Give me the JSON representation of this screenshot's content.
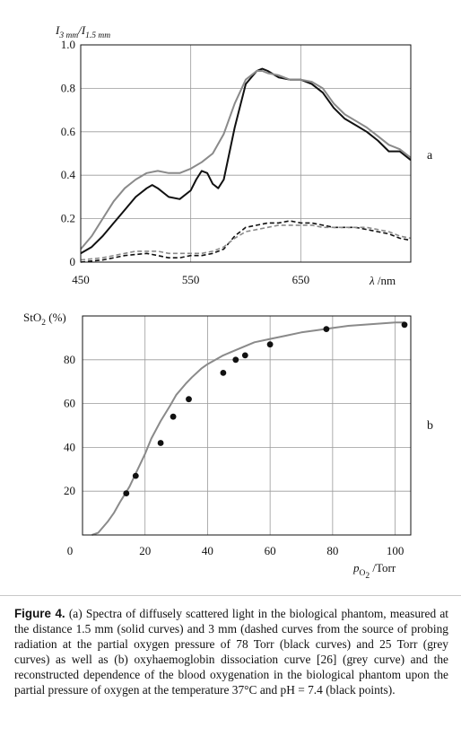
{
  "chart_data": [
    {
      "type": "line",
      "panel_label": "a",
      "ylabel_parts": [
        "I",
        "3 mm",
        "/I",
        "1.5 mm"
      ],
      "xlabel_parts": [
        "λ",
        " /nm"
      ],
      "xlim": [
        450,
        750
      ],
      "ylim": [
        0,
        1.0
      ],
      "x_ticks": [
        450,
        550,
        650
      ],
      "y_ticks": [
        "0",
        "0.2",
        "0.4",
        "0.6",
        "0.8",
        "1.0"
      ],
      "grid": true,
      "series": [
        {
          "style": "solid",
          "color": "#111111",
          "x": [
            450,
            460,
            470,
            480,
            490,
            500,
            510,
            515,
            520,
            530,
            540,
            550,
            555,
            560,
            565,
            570,
            575,
            580,
            590,
            600,
            610,
            615,
            620,
            630,
            640,
            650,
            660,
            670,
            680,
            690,
            700,
            710,
            720,
            730,
            740,
            750
          ],
          "y": [
            0.04,
            0.07,
            0.12,
            0.18,
            0.24,
            0.3,
            0.34,
            0.355,
            0.34,
            0.3,
            0.29,
            0.33,
            0.38,
            0.42,
            0.41,
            0.36,
            0.34,
            0.38,
            0.62,
            0.82,
            0.88,
            0.89,
            0.88,
            0.85,
            0.84,
            0.84,
            0.82,
            0.78,
            0.71,
            0.66,
            0.63,
            0.6,
            0.56,
            0.51,
            0.51,
            0.47
          ]
        },
        {
          "style": "solid",
          "color": "#8a8a8a",
          "x": [
            450,
            460,
            470,
            480,
            490,
            500,
            510,
            520,
            530,
            540,
            550,
            560,
            570,
            580,
            590,
            600,
            610,
            615,
            620,
            630,
            640,
            650,
            660,
            670,
            680,
            690,
            700,
            710,
            720,
            730,
            740,
            750
          ],
          "y": [
            0.06,
            0.12,
            0.2,
            0.28,
            0.34,
            0.38,
            0.41,
            0.42,
            0.41,
            0.41,
            0.43,
            0.46,
            0.5,
            0.59,
            0.73,
            0.84,
            0.88,
            0.88,
            0.87,
            0.86,
            0.84,
            0.84,
            0.83,
            0.8,
            0.73,
            0.68,
            0.65,
            0.62,
            0.58,
            0.54,
            0.52,
            0.48
          ]
        },
        {
          "style": "dashed",
          "color": "#111111",
          "x": [
            450,
            460,
            470,
            480,
            490,
            500,
            510,
            520,
            530,
            540,
            550,
            560,
            570,
            580,
            590,
            600,
            610,
            620,
            630,
            640,
            650,
            660,
            670,
            680,
            690,
            700,
            710,
            720,
            730,
            740,
            750
          ],
          "y": [
            0.0,
            0.005,
            0.01,
            0.02,
            0.03,
            0.035,
            0.04,
            0.03,
            0.02,
            0.02,
            0.03,
            0.03,
            0.04,
            0.06,
            0.12,
            0.16,
            0.17,
            0.18,
            0.18,
            0.19,
            0.18,
            0.18,
            0.17,
            0.16,
            0.16,
            0.16,
            0.15,
            0.14,
            0.13,
            0.11,
            0.1
          ]
        },
        {
          "style": "dashed",
          "color": "#8a8a8a",
          "x": [
            450,
            460,
            470,
            480,
            490,
            500,
            510,
            520,
            530,
            540,
            550,
            560,
            570,
            580,
            590,
            600,
            610,
            620,
            630,
            640,
            650,
            660,
            670,
            680,
            690,
            700,
            710,
            720,
            730,
            740,
            750
          ],
          "y": [
            0.01,
            0.015,
            0.02,
            0.03,
            0.04,
            0.05,
            0.05,
            0.05,
            0.04,
            0.04,
            0.04,
            0.04,
            0.05,
            0.07,
            0.11,
            0.14,
            0.15,
            0.16,
            0.17,
            0.17,
            0.17,
            0.17,
            0.16,
            0.16,
            0.16,
            0.16,
            0.16,
            0.15,
            0.14,
            0.12,
            0.11
          ]
        }
      ]
    },
    {
      "type": "scatter",
      "panel_label": "b",
      "ylabel_parts": [
        "StO",
        "2",
        " (%)"
      ],
      "xlabel_parts": [
        "p",
        "O",
        "2",
        " /Torr"
      ],
      "xlim": [
        0,
        105
      ],
      "ylim": [
        0,
        100
      ],
      "x_ticks": [
        "0",
        "20",
        "40",
        "60",
        "80",
        "100"
      ],
      "y_ticks": [
        "20",
        "40",
        "60",
        "80"
      ],
      "grid": true,
      "curve": {
        "color": "#8a8a8a",
        "x": [
          3,
          5,
          8,
          10,
          12,
          15,
          18,
          20,
          22,
          25,
          28,
          30,
          33,
          35,
          38,
          40,
          45,
          50,
          55,
          60,
          65,
          70,
          75,
          80,
          85,
          90,
          95,
          100,
          103
        ],
        "y": [
          0,
          1,
          6,
          10,
          15,
          22,
          31,
          37,
          44,
          52,
          59,
          64,
          69,
          72,
          76,
          78,
          82,
          85,
          88,
          89.5,
          91,
          92.5,
          93.5,
          94.5,
          95.5,
          96,
          96.5,
          97,
          97
        ]
      },
      "points": {
        "color": "#111111",
        "x": [
          14,
          17,
          25,
          29,
          34,
          45,
          49,
          52,
          60,
          78,
          103
        ],
        "y": [
          19,
          27,
          42,
          54,
          62,
          74,
          80,
          82,
          87,
          94,
          96
        ]
      }
    }
  ],
  "caption": {
    "label": "Figure 4.",
    "text": " (a) Spectra of diffusely scattered light in the biological phantom, measured at the distance 1.5 mm (solid curves) and 3 mm (dashed curves from the source of probing radiation at the partial oxygen pressure of 78 Torr (black curves) and 25 Torr (grey curves) as well as (b) oxyhaemoglobin dissociation curve [26] (grey curve) and the reconstructed dependence of the blood oxygenation in the biological phantom upon the partial pressure of oxygen at the temperature 37°C and pH = 7.4 (black points)."
  }
}
